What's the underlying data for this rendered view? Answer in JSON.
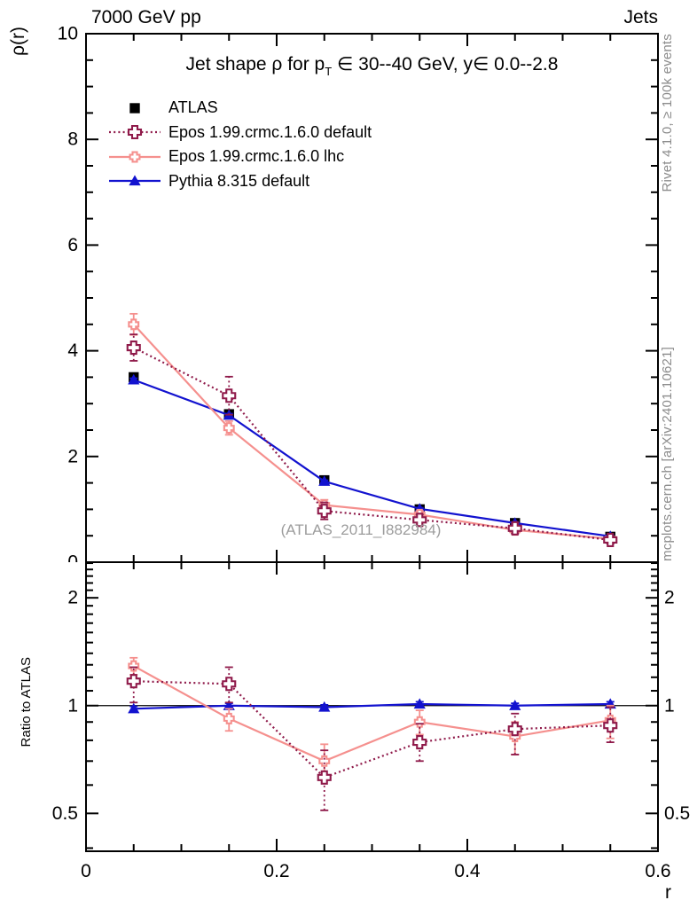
{
  "header": {
    "left": "7000 GeV pp",
    "right": "Jets"
  },
  "titles": {
    "y_axis": "ρ(r)",
    "x_axis": "r",
    "ratio_y_axis": "Ratio to ATLAS",
    "plot_title_pre": "Jet shape ρ for p",
    "plot_title_sub": "T",
    "plot_title_post": " ∈ 30--40 GeV, y∈ 0.0--2.8",
    "watermark": "(ATLAS_2011_I882984)"
  },
  "side_notes": {
    "top_right": "Rivet 4.1.0, ≥ 100k events",
    "bottom_right": "mcplots.cern.ch [arXiv:2401.10621]"
  },
  "colors": {
    "atlas": "#000000",
    "epos_default": "#8f1a4a",
    "epos_lhc": "#f5908e",
    "pythia": "#1212cf",
    "gray_text": "#8c8c8c",
    "watermark": "#9c9c9c"
  },
  "chart_data": [
    {
      "type": "line",
      "panel": "main",
      "title": "Jet shape ρ for pT ∈ 30--40 GeV, y∈ 0.0--2.8",
      "xlabel": "r",
      "ylabel": "ρ(r)",
      "xlim": [
        0,
        0.6
      ],
      "ylim": [
        0,
        10
      ],
      "yscale": "linear",
      "grid": false,
      "legend_position": "upper-left",
      "x": [
        0.05,
        0.15,
        0.25,
        0.35,
        0.45,
        0.55
      ],
      "x_ticks": {
        "major": [
          0,
          0.2,
          0.4,
          0.6
        ],
        "major_labels": [
          "0",
          "0.2",
          "0.4",
          "0.6"
        ],
        "minor_step": 0.05
      },
      "y_ticks": {
        "major": [
          0,
          2,
          4,
          6,
          8,
          10
        ],
        "major_labels": [
          "0",
          "2",
          "4",
          "6",
          "8",
          "10"
        ],
        "minor_step": 0.5
      },
      "series": [
        {
          "label": "ATLAS",
          "color": "#000000",
          "marker": "square",
          "line": "none",
          "values": [
            3.5,
            2.8,
            1.55,
            1.0,
            0.74,
            0.48
          ],
          "errors": [
            0,
            0,
            0,
            0,
            0,
            0
          ]
        },
        {
          "label": "Epos 1.99.crmc.1.6.0 default",
          "color": "#8f1a4a",
          "marker": "cross-large",
          "line": "dotted",
          "values": [
            4.06,
            3.15,
            0.97,
            0.8,
            0.64,
            0.42
          ],
          "errors": [
            0.25,
            0.36,
            0.16,
            0.1,
            0.1,
            0.07
          ]
        },
        {
          "label": "Epos 1.99.crmc.1.6.0 lhc",
          "color": "#f5908e",
          "marker": "cross-small",
          "line": "solid",
          "values": [
            4.5,
            2.54,
            1.08,
            0.9,
            0.61,
            0.44
          ],
          "errors": [
            0.2,
            0.13,
            0.1,
            0.07,
            0.06,
            0.05
          ]
        },
        {
          "label": "Pythia 8.315 default",
          "color": "#1212cf",
          "marker": "triangle",
          "line": "solid",
          "values": [
            3.45,
            2.78,
            1.53,
            1.01,
            0.74,
            0.49
          ],
          "errors": [
            0.03,
            0.03,
            0.02,
            0.02,
            0.02,
            0.02
          ]
        }
      ]
    },
    {
      "type": "line",
      "panel": "ratio",
      "ylabel": "Ratio to ATLAS",
      "xlim": [
        0,
        0.6
      ],
      "ylim": [
        0.392,
        2.515
      ],
      "yscale": "log",
      "reference_line": 1,
      "x": [
        0.05,
        0.15,
        0.25,
        0.35,
        0.45,
        0.55
      ],
      "x_ticks": {
        "major": [
          0,
          0.2,
          0.4,
          0.6
        ],
        "major_labels": [
          "0",
          "0.2",
          "0.4",
          "0.6"
        ],
        "minor_step": 0.05
      },
      "y_ticks": {
        "major": [
          0.5,
          1,
          2
        ],
        "major_labels": [
          "0.5",
          "1",
          "2"
        ],
        "minor": [
          0.4,
          0.6,
          0.7,
          0.8,
          0.9,
          1.1,
          1.2,
          1.3,
          1.4,
          1.5,
          1.6,
          1.7,
          1.8,
          1.9,
          2.1,
          2.2,
          2.3,
          2.4,
          2.5
        ]
      },
      "series": [
        {
          "label": "Epos 1.99.crmc.1.6.0 default",
          "color": "#8f1a4a",
          "marker": "cross-large",
          "line": "dotted",
          "values": [
            1.17,
            1.15,
            0.63,
            0.79,
            0.86,
            0.88
          ],
          "err_lo": [
            1.02,
            1.02,
            0.51,
            0.7,
            0.73,
            0.79
          ],
          "err_hi": [
            1.28,
            1.28,
            0.75,
            0.89,
            0.95,
            0.99
          ]
        },
        {
          "label": "Epos 1.99.crmc.1.6.0 lhc",
          "color": "#f5908e",
          "marker": "cross-small",
          "line": "solid",
          "values": [
            1.29,
            0.92,
            0.7,
            0.9,
            0.82,
            0.91
          ],
          "err_lo": [
            1.22,
            0.85,
            0.63,
            0.83,
            0.73,
            0.81
          ],
          "err_hi": [
            1.36,
            0.98,
            0.78,
            0.97,
            0.9,
            1.0
          ]
        },
        {
          "label": "Pythia 8.315 default",
          "color": "#1212cf",
          "marker": "triangle",
          "line": "solid",
          "values": [
            0.98,
            1.0,
            0.99,
            1.01,
            1.0,
            1.01
          ],
          "err_lo": [
            0.965,
            0.985,
            0.975,
            0.995,
            0.985,
            0.995
          ],
          "err_hi": [
            0.995,
            1.015,
            1.005,
            1.025,
            1.015,
            1.025
          ]
        }
      ]
    }
  ]
}
